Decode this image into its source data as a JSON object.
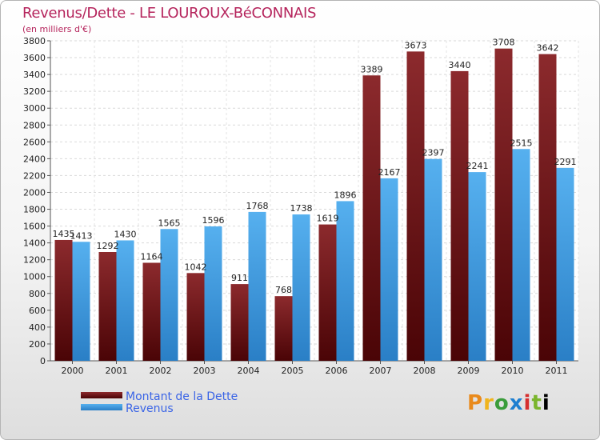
{
  "chart_data": {
    "type": "bar",
    "title": "Revenus/Dette - LE LOUROUX-BéCONNAIS",
    "subtitle": "(en milliers d'€)",
    "categories": [
      "2000",
      "2001",
      "2002",
      "2003",
      "2004",
      "2005",
      "2006",
      "2007",
      "2008",
      "2009",
      "2010",
      "2011"
    ],
    "series": [
      {
        "name": "Montant de la Dette",
        "color": "#7a1f22",
        "values": [
          1435,
          1292,
          1164,
          1042,
          911,
          768,
          1619,
          3389,
          3673,
          3440,
          3708,
          3642
        ]
      },
      {
        "name": "Revenus",
        "color": "#4aa3e6",
        "values": [
          1413,
          1430,
          1565,
          1596,
          1768,
          1738,
          1896,
          2167,
          2397,
          2241,
          2515,
          2291
        ]
      }
    ],
    "ylim": [
      0,
      3800
    ],
    "yticks": [
      0,
      200,
      400,
      600,
      800,
      1000,
      1200,
      1400,
      1600,
      1800,
      2000,
      2200,
      2400,
      2600,
      2800,
      3000,
      3200,
      3400,
      3600,
      3800
    ],
    "grid": true,
    "legend_position": "bottom-left"
  },
  "logo": {
    "letters": [
      "P",
      "r",
      "o",
      "x",
      "i",
      "t",
      "i"
    ]
  }
}
